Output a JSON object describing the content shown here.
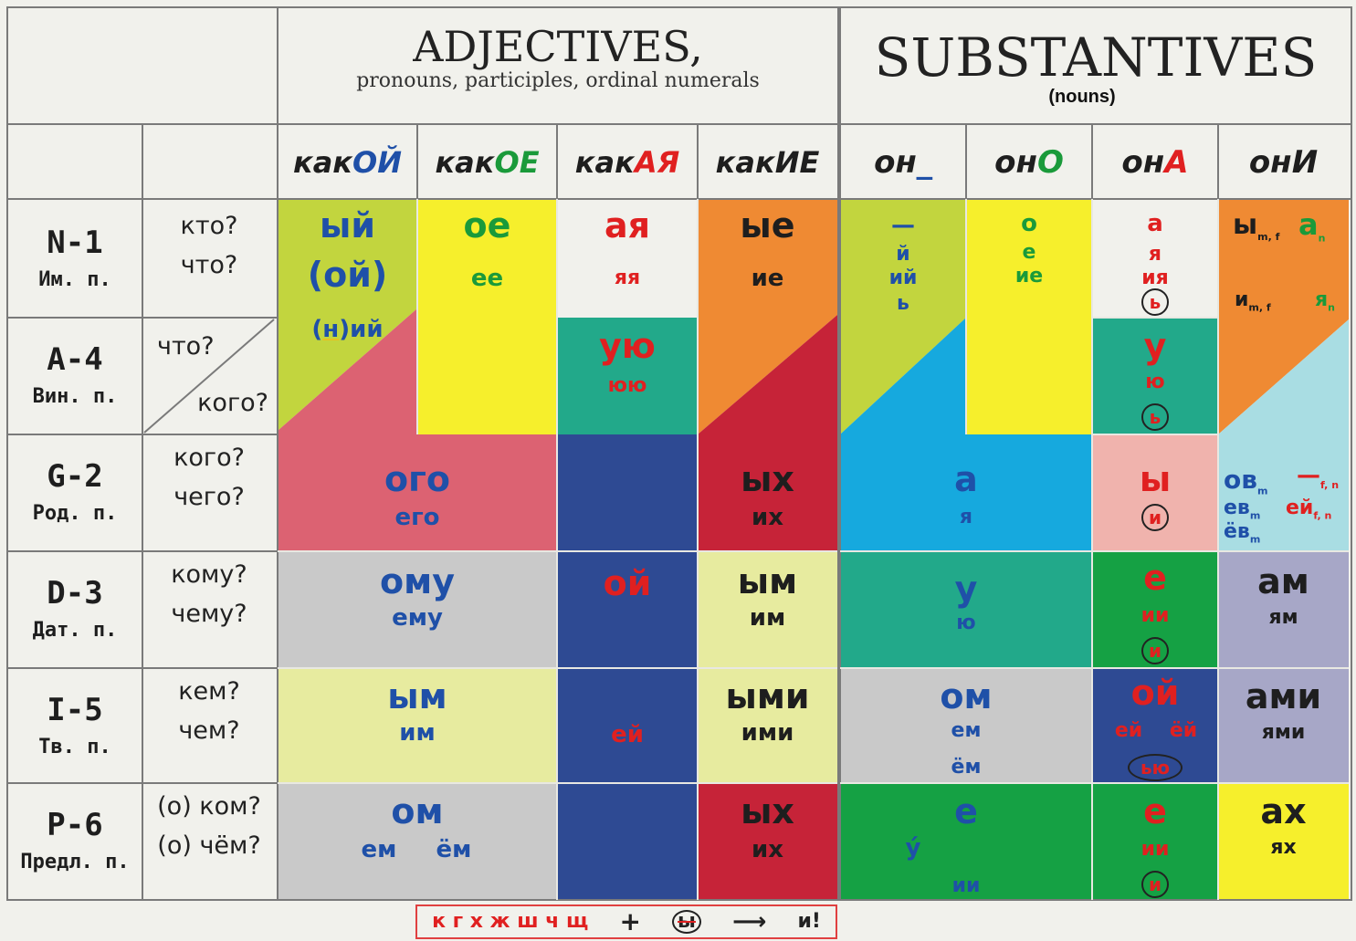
{
  "header": {
    "adjectives_title": "ADJECTIVES,",
    "adjectives_subtitle": "pronouns, participles, ordinal numerals",
    "substantives_title": "SUBSTANTIVES",
    "substantives_subtitle": "(nouns)"
  },
  "columns": {
    "adj": [
      {
        "stem": "как",
        "ending": "ОЙ",
        "color": "#1f50a8"
      },
      {
        "stem": "как",
        "ending": "ОЕ",
        "color": "#1a9a3a"
      },
      {
        "stem": "как",
        "ending": "АЯ",
        "color": "#e02020"
      },
      {
        "stem": "как",
        "ending": "ИЕ",
        "color": "#1e1e1e"
      }
    ],
    "noun": [
      {
        "stem": "он",
        "ending": "_",
        "color": "#1f50a8"
      },
      {
        "stem": "он",
        "ending": "О",
        "color": "#1a9a3a"
      },
      {
        "stem": "он",
        "ending": "А",
        "color": "#e02020"
      },
      {
        "stem": "он",
        "ending": "И",
        "color": "#1e1e1e"
      }
    ]
  },
  "cases": [
    {
      "code": "N-1",
      "name": "Им. п.",
      "q1": "кто?",
      "q2": "что?"
    },
    {
      "code": "A-4",
      "name": "Вин. п.",
      "q1": "что?",
      "q2": "кого?"
    },
    {
      "code": "G-2",
      "name": "Род. п.",
      "q1": "кого?",
      "q2": "чего?"
    },
    {
      "code": "D-3",
      "name": "Дат. п.",
      "q1": "кому?",
      "q2": "чему?"
    },
    {
      "code": "I-5",
      "name": "Тв. п.",
      "q1": "кем?",
      "q2": "чем?"
    },
    {
      "code": "P-6",
      "name": "Предл. п.",
      "q1": "(о) ком?",
      "q2": "(о) чём?"
    }
  ],
  "endings": {
    "adj_m_nom_1": "ый",
    "adj_m_nom_2": "(ой)",
    "adj_m_nom_3a": "(",
    "adj_m_nom_3b": "н",
    "adj_m_nom_3c": ")ий",
    "adj_n_nom_1": "ое",
    "adj_n_nom_2": "ее",
    "adj_f_nom_1": "ая",
    "adj_f_nom_2": "яя",
    "adj_pl_nom_1": "ые",
    "adj_pl_nom_2": "ие",
    "adj_f_acc_1": "ую",
    "adj_f_acc_2": "юю",
    "adj_mn_gen_1": "ого",
    "adj_mn_gen_2": "его",
    "adj_pl_gen_1": "ых",
    "adj_pl_gen_2": "их",
    "adj_f_obl": "ой",
    "adj_f_inst2": "ей",
    "adj_mn_dat_1": "ому",
    "adj_mn_dat_2": "ему",
    "adj_pl_dat_1": "ым",
    "adj_pl_dat_2": "им",
    "adj_mn_inst_1": "ым",
    "adj_mn_inst_2": "им",
    "adj_pl_inst_1": "ыми",
    "adj_pl_inst_2": "ими",
    "adj_mn_prep_1": "ом",
    "adj_mn_prep_2": "ем",
    "adj_mn_prep_3": "ём",
    "adj_pl_prep_1": "ых",
    "adj_pl_prep_2": "их",
    "n_m_nom_1": "—",
    "n_m_nom_2": "й",
    "n_m_nom_3": "ий",
    "n_m_nom_4": "ь",
    "n_n_nom_1": "о",
    "n_n_nom_2": "е",
    "n_n_nom_3": "ие",
    "n_f_nom_1": "а",
    "n_f_nom_2": "я",
    "n_f_nom_3": "ия",
    "n_f_nom_4": "ь",
    "n_pl_nom_1": "ы",
    "n_pl_nom_1s": "m, f",
    "n_pl_nom_2": "а",
    "n_pl_nom_2s": "n",
    "n_pl_nom_3": "и",
    "n_pl_nom_3s": "m, f",
    "n_pl_nom_4": "я",
    "n_pl_nom_4s": "n",
    "n_f_acc_1": "у",
    "n_f_acc_2": "ю",
    "n_f_acc_3": "ь",
    "n_mn_gen_1": "а",
    "n_mn_gen_2": "я",
    "n_f_gen_1": "ы",
    "n_f_gen_2": "и",
    "n_pl_gen_1": "ов",
    "n_pl_gen_1s": "m",
    "n_pl_gen_2": "—",
    "n_pl_gen_2s": "f, n",
    "n_pl_gen_3": "ев",
    "n_pl_gen_3s": "m",
    "n_pl_gen_4": "ей",
    "n_pl_gen_4s": "f, n",
    "n_pl_gen_5": "ёв",
    "n_pl_gen_5s": "m",
    "n_mn_dat_1": "у",
    "n_mn_dat_2": "ю",
    "n_f_dat_1": "е",
    "n_f_dat_2": "ии",
    "n_f_dat_3": "и",
    "n_pl_dat_1": "ам",
    "n_pl_dat_2": "ям",
    "n_mn_inst_1": "ом",
    "n_mn_inst_2": "ем",
    "n_mn_inst_3": "ём",
    "n_f_inst_1": "ой",
    "n_f_inst_2": "ей",
    "n_f_inst_3": "ёй",
    "n_f_inst_4": "ью",
    "n_pl_inst_1": "ами",
    "n_pl_inst_2": "ями",
    "n_mn_prep_1": "е",
    "n_mn_prep_2": "у́",
    "n_mn_prep_3": "ии",
    "n_f_prep_1": "е",
    "n_f_prep_2": "ии",
    "n_f_prep_3": "и",
    "n_pl_prep_1": "ах",
    "n_pl_prep_2": "ях"
  },
  "footer_rule": {
    "letters": "к г х ж ш ч щ",
    "plus": "+",
    "crossed": "ы",
    "arrow": "⟶",
    "result": "и!"
  },
  "colors": {
    "lime": "#c2d53e",
    "yellow": "#f6ef2c",
    "pink": "#dc6272",
    "orange": "#ef8a33",
    "teal": "#22a98a",
    "navy": "#2e4a93",
    "crimson": "#c62338",
    "gray": "#c9c9c9",
    "paleyellow": "#e7eb9f",
    "cyan": "#16a9de",
    "salmon": "#f0b3ad",
    "green": "#15a144",
    "lightblue": "#a9dde3",
    "lavender": "#a7a7c7"
  }
}
